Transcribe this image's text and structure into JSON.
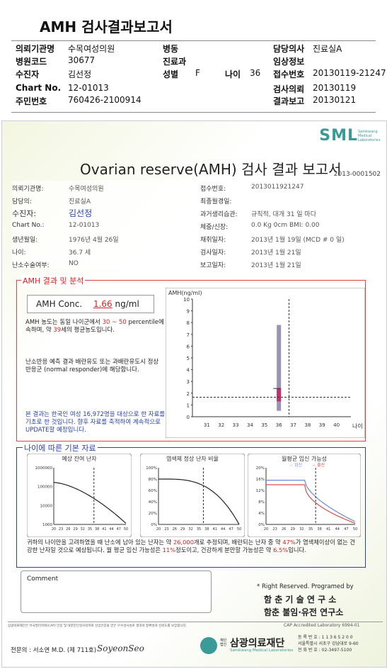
{
  "header": {
    "title": "AMH 검사결과보고서",
    "rows": [
      {
        "l1": "의뢰기관명",
        "v1": "수목여성의원",
        "l2": "병동",
        "v2": "",
        "l3": "담당의사",
        "v3": "진료실A"
      },
      {
        "l1": "병원코드",
        "v1": "30677",
        "l2": "진료과",
        "v2": "",
        "l3": "임상정보",
        "v3": ""
      },
      {
        "l1": "수진자",
        "v1": "김선정",
        "l2": "성별",
        "v2": "F",
        "l2b": "나이",
        "v2b": "36",
        "l3": "접수번호",
        "v3": "20130119-21247"
      },
      {
        "l1": "Chart No.",
        "v1": "12-01013",
        "l2": "",
        "v2": "",
        "l3": "검사의뢰",
        "v3": "20130119"
      },
      {
        "l1": "주민번호",
        "v1": "760426-2100914",
        "l2": "",
        "v2": "",
        "l3": "결과보고",
        "v3": "20130121"
      }
    ]
  },
  "report": {
    "logo": "SML",
    "logo_sub": "Samkwang Medical Laboratories",
    "title": "Ovarian reserve(AMH) 검사 결과 보고서",
    "report_no": "2013-0001502",
    "left_info": [
      {
        "label": "의뢰기관명:",
        "value": "수목여성의원"
      },
      {
        "label": "담당의:",
        "value": "진료실A"
      },
      {
        "label": "수진자:",
        "value": "김선정"
      },
      {
        "label": "Chart No.:",
        "value": "12-01013"
      },
      {
        "label": "생년월일:",
        "value": "1976년 4월 26일"
      },
      {
        "label": "나이:",
        "value": "36.7 세"
      },
      {
        "label": "난소수술여부:",
        "value": "NO"
      }
    ],
    "right_info": [
      {
        "label": "접수번호:",
        "value": "2013011921247"
      },
      {
        "label": "최종월경일:",
        "value": ""
      },
      {
        "label": "과거생리습관:",
        "value": "규칙적,  대개   31 일 마다"
      },
      {
        "label": "체중/신장:",
        "value": "0.0  Kg        0cm    BMI:    0.00"
      },
      {
        "label": "채취일자:",
        "value": "2013년 1월 19일   (MCD #  0 일)"
      },
      {
        "label": "검사일자:",
        "value": "2013년 1월 21일"
      },
      {
        "label": "보고일자:",
        "value": "2013년 1월 21일"
      }
    ],
    "amh_section": {
      "title": "AMH 결과 및 분석",
      "conc_label": "AMH Conc.",
      "conc_value": "1.66",
      "conc_unit": "ng/ml",
      "text1a": "AMH 농도는 동일 나이군에서",
      "pct_lo": "30",
      "pct_sep": "~",
      "pct_hi": "50",
      "text1b": "percentile에 속하며, 약",
      "age_eq": "39",
      "text1c": "세의 평균농도입니다.",
      "text2": "난소반응 예측 결과 배란유도 또는 과배란유도시 정상반응군 (normal responder)에 해당합니다.",
      "text3": "본 결과는 한국인 여성 16,972명을 대상으로 한 자료를 기초로 한 것입니다. 향후 자료를 축적하여 계속적으로 UPDATE할 예정입니다."
    },
    "basic_section": {
      "title": "나이에 따른 기본 자료",
      "chart_titles": [
        "예상 잔여 난자",
        "염색체 정상 난자 비율",
        "월평균 임신 가능성"
      ],
      "legend": [
        "임신",
        "출산"
      ],
      "summary_a": "귀하의 나이만을 고려하였을 때 난소에 남아 있는 난자는 약",
      "eggs": "26,000",
      "summary_b": "개로 추정되며, 배란되는 난자 중 약",
      "normal_pct": "47%",
      "summary_c": "가 염색체이상이 없는 건강한 난자일 것으로 예상됩니다. 월 평균 임신 가능성은",
      "preg_pct": "11%",
      "summary_d": "정도이고, 건강하게 분만할 가능성은 약",
      "birth_pct": "6.5%",
      "summary_e": "입니다."
    },
    "comment_label": "Comment",
    "rights": "* Right Reserved. Programed by",
    "lab1": "함 춘 기 술 연 구 소",
    "lab2": "함춘 불임·유전 연구소",
    "fine_print": "삼광의료재단은 미국병리학회(CAP) 인증 및 대한진단검사의학회 신임인증을 받은 우수검사실로 결과의 정확성과 신뢰도를 보장합니다.",
    "cap": "CAP  Accredited  Laboratory   6994-01",
    "signer": "전문의 : 서소연 M.D. (제 711호)",
    "signature": "SoyeonSeo",
    "foundation": "삼광의료재단",
    "foundation_en": "Samkwang Medical Laboratories",
    "foundation_prefix": "재단법인",
    "contact": [
      "등 록 번 호 : 1 1 3 6 5 2 0 0",
      "서울특별시 서초구 강남대로 9-60",
      "전 화 번 호 : 02-3497-5100"
    ]
  },
  "chart_data": [
    {
      "type": "scatter",
      "title": "AMH(ng/ml)",
      "xlabel": "나이",
      "xlim": [
        30,
        41
      ],
      "ylim": [
        0,
        10
      ],
      "x_ticks": [
        31,
        32,
        33,
        34,
        35,
        36,
        37,
        38,
        39,
        40
      ],
      "y_ticks": [
        0,
        1,
        2,
        3,
        4,
        5,
        6,
        7,
        8,
        9,
        10
      ],
      "range_bar": {
        "x": 36,
        "low": 0.5,
        "high": 7.8
      },
      "iqr_box": {
        "x": 36,
        "low": 1.3,
        "high": 2.4
      },
      "patient_point": {
        "age": 36.7,
        "amh": 1.66
      }
    },
    {
      "type": "line",
      "title": "예상 잔여 난자",
      "x_ticks": [
        20,
        23,
        26,
        29,
        32,
        35,
        38,
        41,
        44,
        47,
        50
      ],
      "y_ticks": [
        "1000000",
        "100000",
        "10000",
        "1000"
      ],
      "y_scale": "log",
      "marker_age": 36.7
    },
    {
      "type": "line",
      "title": "염색체 정상 난자 비율",
      "x_ticks": [
        20,
        23,
        26,
        29,
        32,
        35,
        38,
        41,
        44,
        47,
        50
      ],
      "y_ticks": [
        "100%",
        "80%",
        "60%",
        "40%",
        "20%",
        "0%"
      ],
      "marker_age": 36.7
    },
    {
      "type": "line",
      "title": "월평균 임신 가능성",
      "x_ticks": [
        20,
        23,
        26,
        29,
        32,
        35,
        38,
        41,
        44,
        47,
        50
      ],
      "y_ticks": [
        "20%",
        "16%",
        "12%",
        "8%",
        "4%",
        "0%"
      ],
      "series": [
        {
          "name": "임신"
        },
        {
          "name": "출산"
        }
      ],
      "marker_age": 36.7
    }
  ]
}
